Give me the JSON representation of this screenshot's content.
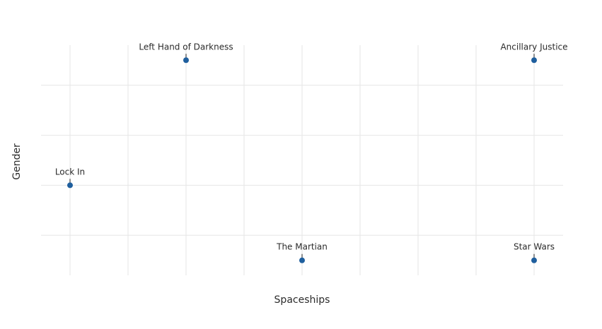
{
  "chart_data": {
    "type": "scatter",
    "title": "",
    "xlabel": "Spaceships",
    "ylabel": "Gender",
    "xlim": [
      -0.25,
      4.25
    ],
    "ylim": [
      -0.3,
      4.3
    ],
    "x_tick_values": [
      0,
      0.5,
      1,
      1.5,
      2,
      2.5,
      3,
      3.5,
      4
    ],
    "y_tick_values": [
      0.5,
      1,
      1.5,
      2,
      2.5,
      3,
      3.5,
      4
    ],
    "y_grid_values": [
      0.5,
      1.5,
      2.5,
      3.5
    ],
    "grid": true,
    "tick_labels_shown": false,
    "points": [
      {
        "label": "Left Hand of Darkness",
        "x": 1,
        "y": 4
      },
      {
        "label": "Ancillary Justice",
        "x": 4,
        "y": 4
      },
      {
        "label": "Lock In",
        "x": 0,
        "y": 1.5
      },
      {
        "label": "The Martian",
        "x": 2,
        "y": 0
      },
      {
        "label": "Star Wars",
        "x": 4,
        "y": 0
      }
    ],
    "colors": {
      "marker": "#1f5f9e",
      "grid": "#e6e6e6",
      "text": "#2b2b2b"
    }
  }
}
